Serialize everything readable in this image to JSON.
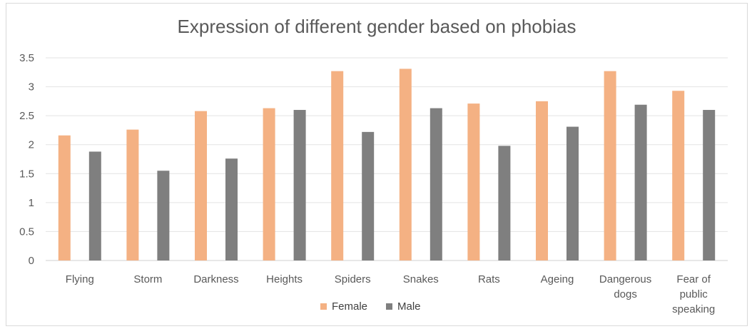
{
  "chart_data": {
    "type": "bar",
    "title": "Expression of different gender based on phobias",
    "xlabel": "",
    "ylabel": "",
    "ylim": [
      0,
      3.5
    ],
    "yticks": [
      "0",
      "0.5",
      "1",
      "1.5",
      "2",
      "2.5",
      "3",
      "3.5"
    ],
    "grid": true,
    "legend_position": "bottom",
    "categories": [
      [
        "Flying"
      ],
      [
        "Storm"
      ],
      [
        "Darkness"
      ],
      [
        "Heights"
      ],
      [
        "Spiders"
      ],
      [
        "Snakes"
      ],
      [
        "Rats"
      ],
      [
        "Ageing"
      ],
      [
        "Dangerous",
        "dogs"
      ],
      [
        "Fear of",
        "public",
        "speaking"
      ]
    ],
    "series": [
      {
        "name": "Female",
        "color": "#f4b183",
        "values": [
          2.16,
          2.26,
          2.58,
          2.63,
          3.27,
          3.31,
          2.71,
          2.75,
          3.27,
          2.93
        ]
      },
      {
        "name": "Male",
        "color": "#7f7f7f",
        "values": [
          1.88,
          1.55,
          1.76,
          2.6,
          2.22,
          2.63,
          1.98,
          2.31,
          2.69,
          2.6
        ]
      }
    ]
  }
}
